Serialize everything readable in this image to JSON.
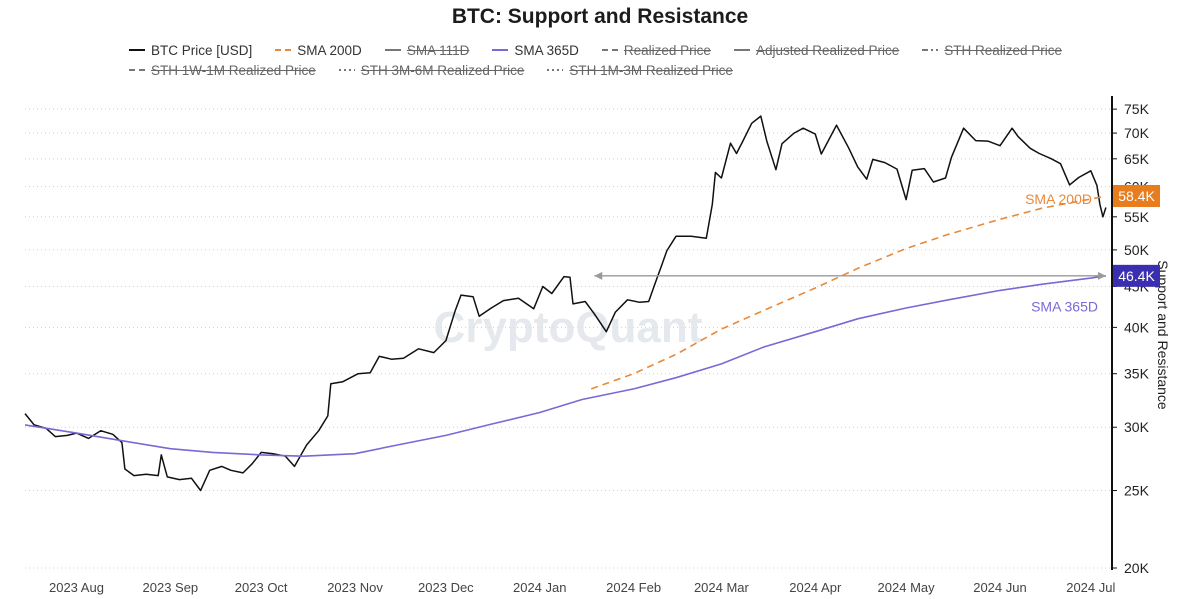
{
  "chart_data": {
    "type": "line",
    "title": "BTC: Support and Resistance",
    "ylabel": "Support and Resistance",
    "yscale": "log",
    "ylim": [
      20000,
      77000
    ],
    "y_ticks": [
      {
        "v": 20000,
        "label": "20K"
      },
      {
        "v": 25000,
        "label": "25K"
      },
      {
        "v": 30000,
        "label": "30K"
      },
      {
        "v": 35000,
        "label": "35K"
      },
      {
        "v": 40000,
        "label": "40K"
      },
      {
        "v": 45000,
        "label": "45K"
      },
      {
        "v": 50000,
        "label": "50K"
      },
      {
        "v": 55000,
        "label": "55K"
      },
      {
        "v": 60000,
        "label": "60K"
      },
      {
        "v": 65000,
        "label": "65K"
      },
      {
        "v": 70000,
        "label": "70K"
      },
      {
        "v": 75000,
        "label": "75K"
      }
    ],
    "xlim": [
      "2023-07-15",
      "2024-07-08"
    ],
    "x_ticks": [
      {
        "date": "2023-08-01",
        "label": "2023 Aug"
      },
      {
        "date": "2023-09-01",
        "label": "2023 Sep"
      },
      {
        "date": "2023-10-01",
        "label": "2023 Oct"
      },
      {
        "date": "2023-11-01",
        "label": "2023 Nov"
      },
      {
        "date": "2023-12-01",
        "label": "2023 Dec"
      },
      {
        "date": "2024-01-01",
        "label": "2024 Jan"
      },
      {
        "date": "2024-02-01",
        "label": "2024 Feb"
      },
      {
        "date": "2024-03-01",
        "label": "2024 Mar"
      },
      {
        "date": "2024-04-01",
        "label": "2024 Apr"
      },
      {
        "date": "2024-05-01",
        "label": "2024 May"
      },
      {
        "date": "2024-06-01",
        "label": "2024 Jun"
      },
      {
        "date": "2024-07-01",
        "label": "2024 Jul"
      }
    ],
    "legend_placement": "top",
    "legend": [
      {
        "name": "BTC Price [USD]",
        "color": "#111111",
        "dash": "solid",
        "visible": true
      },
      {
        "name": "SMA 200D",
        "color": "#e8893a",
        "dash": "dashed",
        "visible": true
      },
      {
        "name": "SMA 111D",
        "color": "#777777",
        "dash": "solid",
        "visible": false
      },
      {
        "name": "SMA 365D",
        "color": "#7b68d6",
        "dash": "solid",
        "visible": true
      },
      {
        "name": "Realized Price",
        "color": "#777777",
        "dash": "dashed",
        "visible": false
      },
      {
        "name": "Adjusted Realized Price",
        "color": "#777777",
        "dash": "solid",
        "visible": false
      },
      {
        "name": "STH Realized Price",
        "color": "#777777",
        "dash": "dashdot",
        "visible": false
      },
      {
        "name": "STH 1W-1M Realized Price",
        "color": "#777777",
        "dash": "dashed",
        "visible": false
      },
      {
        "name": "STH 3M-6M Realized Price",
        "color": "#777777",
        "dash": "dotted",
        "visible": false
      },
      {
        "name": "STH 1M-3M Realized Price",
        "color": "#777777",
        "dash": "dotted",
        "visible": false
      }
    ],
    "series": [
      {
        "name": "BTC Price [USD]",
        "color": "#111111",
        "points": [
          [
            "2023-07-15",
            31200
          ],
          [
            "2023-07-18",
            30200
          ],
          [
            "2023-07-22",
            29900
          ],
          [
            "2023-07-25",
            29200
          ],
          [
            "2023-07-29",
            29300
          ],
          [
            "2023-08-01",
            29500
          ],
          [
            "2023-08-05",
            29050
          ],
          [
            "2023-08-09",
            29700
          ],
          [
            "2023-08-13",
            29400
          ],
          [
            "2023-08-16",
            28700
          ],
          [
            "2023-08-17",
            26600
          ],
          [
            "2023-08-20",
            26100
          ],
          [
            "2023-08-24",
            26200
          ],
          [
            "2023-08-28",
            26100
          ],
          [
            "2023-08-29",
            27700
          ],
          [
            "2023-08-31",
            26000
          ],
          [
            "2023-09-04",
            25800
          ],
          [
            "2023-09-08",
            25900
          ],
          [
            "2023-09-11",
            25000
          ],
          [
            "2023-09-14",
            26500
          ],
          [
            "2023-09-18",
            26800
          ],
          [
            "2023-09-21",
            26500
          ],
          [
            "2023-09-25",
            26300
          ],
          [
            "2023-09-28",
            27000
          ],
          [
            "2023-10-01",
            27900
          ],
          [
            "2023-10-05",
            27800
          ],
          [
            "2023-10-09",
            27600
          ],
          [
            "2023-10-12",
            26800
          ],
          [
            "2023-10-16",
            28500
          ],
          [
            "2023-10-20",
            29700
          ],
          [
            "2023-10-23",
            31000
          ],
          [
            "2023-10-24",
            34000
          ],
          [
            "2023-10-28",
            34200
          ],
          [
            "2023-11-02",
            35000
          ],
          [
            "2023-11-06",
            35100
          ],
          [
            "2023-11-09",
            36800
          ],
          [
            "2023-11-13",
            36500
          ],
          [
            "2023-11-17",
            36600
          ],
          [
            "2023-11-22",
            37600
          ],
          [
            "2023-11-27",
            37200
          ],
          [
            "2023-12-01",
            38500
          ],
          [
            "2023-12-04",
            41900
          ],
          [
            "2023-12-06",
            43900
          ],
          [
            "2023-12-10",
            43700
          ],
          [
            "2023-12-12",
            41300
          ],
          [
            "2023-12-16",
            42300
          ],
          [
            "2023-12-20",
            43200
          ],
          [
            "2023-12-25",
            43500
          ],
          [
            "2023-12-30",
            42200
          ],
          [
            "2024-01-02",
            45000
          ],
          [
            "2024-01-05",
            44100
          ],
          [
            "2024-01-09",
            46300
          ],
          [
            "2024-01-11",
            46200
          ],
          [
            "2024-01-12",
            42800
          ],
          [
            "2024-01-16",
            43100
          ],
          [
            "2024-01-19",
            41600
          ],
          [
            "2024-01-23",
            39500
          ],
          [
            "2024-01-26",
            41800
          ],
          [
            "2024-01-30",
            43300
          ],
          [
            "2024-02-03",
            43000
          ],
          [
            "2024-02-06",
            43100
          ],
          [
            "2024-02-08",
            45300
          ],
          [
            "2024-02-10",
            47500
          ],
          [
            "2024-02-12",
            49900
          ],
          [
            "2024-02-15",
            52000
          ],
          [
            "2024-02-20",
            52000
          ],
          [
            "2024-02-25",
            51700
          ],
          [
            "2024-02-27",
            57000
          ],
          [
            "2024-02-28",
            62500
          ],
          [
            "2024-03-01",
            61500
          ],
          [
            "2024-03-04",
            68000
          ],
          [
            "2024-03-06",
            66000
          ],
          [
            "2024-03-08",
            68300
          ],
          [
            "2024-03-11",
            72000
          ],
          [
            "2024-03-14",
            73500
          ],
          [
            "2024-03-16",
            68400
          ],
          [
            "2024-03-19",
            63000
          ],
          [
            "2024-03-21",
            67900
          ],
          [
            "2024-03-25",
            70000
          ],
          [
            "2024-03-28",
            71000
          ],
          [
            "2024-04-01",
            69800
          ],
          [
            "2024-04-03",
            65900
          ],
          [
            "2024-04-08",
            71600
          ],
          [
            "2024-04-12",
            67100
          ],
          [
            "2024-04-15",
            63500
          ],
          [
            "2024-04-18",
            61300
          ],
          [
            "2024-04-20",
            64900
          ],
          [
            "2024-04-24",
            64300
          ],
          [
            "2024-04-28",
            63100
          ],
          [
            "2024-05-01",
            57800
          ],
          [
            "2024-05-03",
            62900
          ],
          [
            "2024-05-07",
            63200
          ],
          [
            "2024-05-10",
            60800
          ],
          [
            "2024-05-14",
            61500
          ],
          [
            "2024-05-16",
            65300
          ],
          [
            "2024-05-20",
            71000
          ],
          [
            "2024-05-24",
            68500
          ],
          [
            "2024-05-28",
            68400
          ],
          [
            "2024-06-01",
            67500
          ],
          [
            "2024-06-05",
            71000
          ],
          [
            "2024-06-07",
            69300
          ],
          [
            "2024-06-11",
            67000
          ],
          [
            "2024-06-14",
            66000
          ],
          [
            "2024-06-18",
            65000
          ],
          [
            "2024-06-21",
            64100
          ],
          [
            "2024-06-24",
            60300
          ],
          [
            "2024-06-27",
            61600
          ],
          [
            "2024-07-01",
            62800
          ],
          [
            "2024-07-03",
            60200
          ],
          [
            "2024-07-04",
            57000
          ],
          [
            "2024-07-05",
            55000
          ],
          [
            "2024-07-06",
            56500
          ]
        ]
      },
      {
        "name": "SMA 200D",
        "color": "#e8893a",
        "points": [
          [
            "2024-01-18",
            33500
          ],
          [
            "2024-02-01",
            35000
          ],
          [
            "2024-02-15",
            37000
          ],
          [
            "2024-03-01",
            39800
          ],
          [
            "2024-03-15",
            42000
          ],
          [
            "2024-04-01",
            44800
          ],
          [
            "2024-04-15",
            47400
          ],
          [
            "2024-05-01",
            50200
          ],
          [
            "2024-05-15",
            52300
          ],
          [
            "2024-06-01",
            54600
          ],
          [
            "2024-06-15",
            56400
          ],
          [
            "2024-07-01",
            57900
          ],
          [
            "2024-07-06",
            58400
          ]
        ]
      },
      {
        "name": "SMA 365D",
        "color": "#7b68d6",
        "points": [
          [
            "2023-07-15",
            30200
          ],
          [
            "2023-08-01",
            29500
          ],
          [
            "2023-08-15",
            28900
          ],
          [
            "2023-09-01",
            28200
          ],
          [
            "2023-09-15",
            27900
          ],
          [
            "2023-10-01",
            27700
          ],
          [
            "2023-10-15",
            27600
          ],
          [
            "2023-11-01",
            27800
          ],
          [
            "2023-11-15",
            28500
          ],
          [
            "2023-12-01",
            29300
          ],
          [
            "2023-12-15",
            30200
          ],
          [
            "2024-01-01",
            31300
          ],
          [
            "2024-01-15",
            32500
          ],
          [
            "2024-02-01",
            33500
          ],
          [
            "2024-02-15",
            34600
          ],
          [
            "2024-03-01",
            36000
          ],
          [
            "2024-03-15",
            37800
          ],
          [
            "2024-04-01",
            39500
          ],
          [
            "2024-04-15",
            41000
          ],
          [
            "2024-05-01",
            42300
          ],
          [
            "2024-05-15",
            43300
          ],
          [
            "2024-06-01",
            44500
          ],
          [
            "2024-06-15",
            45300
          ],
          [
            "2024-07-01",
            46100
          ],
          [
            "2024-07-06",
            46400
          ]
        ]
      }
    ],
    "annotations": [
      {
        "text": "SMA 200D",
        "color": "#e8893a",
        "series": "SMA 200D"
      },
      {
        "text": "SMA 365D",
        "color": "#7b68d6",
        "series": "SMA 365D"
      }
    ],
    "reference_line": {
      "from_date": "2024-01-19",
      "to_date": "2024-07-06",
      "y": 46400,
      "color": "#9a9a9a",
      "arrowheads": "both"
    },
    "value_badges": [
      {
        "text": "58.4K",
        "value": 58400,
        "bg": "#e87d1e",
        "fg": "#ffffff"
      },
      {
        "text": "46.4K",
        "value": 46400,
        "bg": "#3a2fb0",
        "fg": "#ffffff"
      }
    ],
    "watermark": "CryptoQuant",
    "grid": {
      "horizontal": "dotted",
      "vertical": false
    }
  }
}
